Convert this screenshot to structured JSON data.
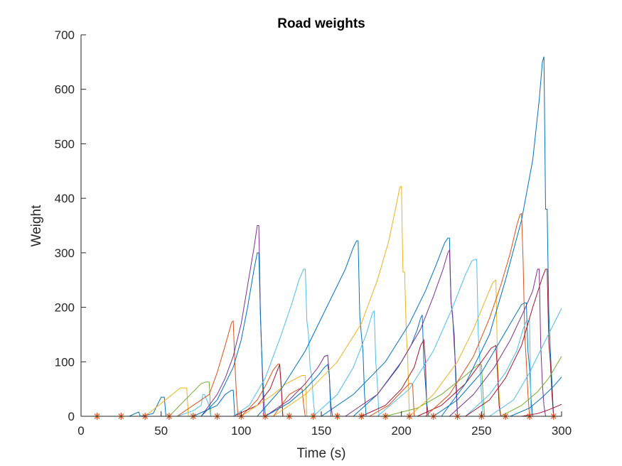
{
  "chart_data": {
    "type": "line",
    "title": "Road weights",
    "xlabel": "Time (s)",
    "ylabel": "Weight",
    "xlim": [
      0,
      300
    ],
    "ylim": [
      0,
      700
    ],
    "xticks": [
      0,
      50,
      100,
      150,
      200,
      250,
      300
    ],
    "yticks": [
      0,
      100,
      200,
      300,
      400,
      500,
      600,
      700
    ],
    "grid": false,
    "legend": "none",
    "colors": [
      "#0072BD",
      "#D95319",
      "#EDB120",
      "#7E2F8E",
      "#77AC30",
      "#4DBEEE",
      "#A2142F"
    ],
    "series": [
      {
        "color": "#0072BD",
        "x": [
          0,
          30,
          36,
          37,
          45,
          50,
          52,
          53,
          300
        ],
        "y": [
          0,
          0,
          8,
          0,
          5,
          35,
          35,
          0,
          0
        ]
      },
      {
        "color": "#EDB120",
        "x": [
          0,
          40,
          62,
          64,
          66,
          67,
          300
        ],
        "y": [
          0,
          0,
          52,
          52,
          52,
          0,
          0
        ]
      },
      {
        "color": "#77AC30",
        "x": [
          0,
          55,
          75,
          78,
          80,
          81,
          300
        ],
        "y": [
          0,
          0,
          60,
          63,
          63,
          0,
          0
        ]
      },
      {
        "color": "#4DBEEE",
        "x": [
          0,
          60,
          70,
          75,
          76,
          77,
          80,
          81,
          300
        ],
        "y": [
          0,
          0,
          10,
          20,
          40,
          40,
          20,
          0,
          0
        ]
      },
      {
        "color": "#0072BD",
        "x": [
          0,
          70,
          85,
          90,
          94,
          95,
          96,
          300
        ],
        "y": [
          0,
          0,
          20,
          40,
          48,
          48,
          0,
          0
        ]
      },
      {
        "color": "#D95319",
        "x": [
          0,
          60,
          80,
          85,
          90,
          94,
          95,
          96,
          97,
          98,
          300
        ],
        "y": [
          0,
          0,
          40,
          80,
          130,
          172,
          175,
          100,
          40,
          0,
          0
        ]
      },
      {
        "color": "#7E2F8E",
        "x": [
          0,
          75,
          85,
          90,
          95,
          100,
          104,
          108,
          110,
          111,
          112,
          113,
          114,
          300
        ],
        "y": [
          0,
          0,
          40,
          70,
          110,
          170,
          240,
          310,
          350,
          350,
          185,
          100,
          0,
          0
        ]
      },
      {
        "color": "#0072BD",
        "x": [
          0,
          75,
          85,
          95,
          100,
          104,
          108,
          110,
          111,
          112,
          113,
          114,
          115,
          300
        ],
        "y": [
          0,
          0,
          30,
          90,
          140,
          200,
          270,
          300,
          300,
          185,
          100,
          40,
          0,
          0
        ]
      },
      {
        "color": "#D95319",
        "x": [
          0,
          100,
          110,
          115,
          120,
          123,
          124,
          125,
          126,
          300
        ],
        "y": [
          0,
          0,
          30,
          55,
          85,
          96,
          96,
          50,
          0,
          0
        ]
      },
      {
        "color": "#A2142F",
        "x": [
          0,
          95,
          110,
          118,
          122,
          124,
          125,
          126,
          300
        ],
        "y": [
          0,
          0,
          20,
          50,
          80,
          95,
          55,
          0,
          0
        ]
      },
      {
        "color": "#4DBEEE",
        "x": [
          0,
          95,
          105,
          115,
          125,
          132,
          136,
          139,
          140,
          141,
          142,
          143,
          144,
          145,
          146,
          300
        ],
        "y": [
          0,
          0,
          20,
          70,
          150,
          210,
          250,
          270,
          270,
          175,
          150,
          90,
          75,
          30,
          0,
          0
        ]
      },
      {
        "color": "#EDB120",
        "x": [
          0,
          100,
          110,
          120,
          128,
          138,
          140,
          141,
          300
        ],
        "y": [
          0,
          0,
          20,
          40,
          60,
          75,
          75,
          0,
          0
        ]
      },
      {
        "color": "#D95319",
        "x": [
          0,
          120,
          130,
          136,
          138,
          139,
          140,
          300
        ],
        "y": [
          0,
          0,
          40,
          50,
          50,
          20,
          0,
          0
        ]
      },
      {
        "color": "#7E2F8E",
        "x": [
          0,
          115,
          130,
          140,
          148,
          152,
          154,
          155,
          156,
          157,
          300
        ],
        "y": [
          0,
          0,
          30,
          60,
          90,
          110,
          112,
          75,
          20,
          0,
          0
        ]
      },
      {
        "color": "#0072BD",
        "x": [
          0,
          115,
          130,
          140,
          148,
          152,
          154,
          155,
          156,
          300
        ],
        "y": [
          0,
          0,
          25,
          50,
          75,
          90,
          95,
          75,
          0,
          0
        ]
      },
      {
        "color": "#0072BD",
        "x": [
          0,
          110,
          125,
          140,
          155,
          165,
          170,
          172,
          173,
          174,
          175,
          176,
          177,
          178,
          300
        ],
        "y": [
          0,
          0,
          50,
          120,
          210,
          270,
          310,
          322,
          322,
          185,
          150,
          120,
          40,
          0,
          0
        ]
      },
      {
        "color": "#4DBEEE",
        "x": [
          0,
          145,
          160,
          170,
          178,
          182,
          183,
          184,
          185,
          186,
          300
        ],
        "y": [
          0,
          0,
          40,
          90,
          150,
          190,
          193,
          100,
          60,
          0,
          0
        ]
      },
      {
        "color": "#EDB120",
        "x": [
          0,
          120,
          140,
          160,
          175,
          185,
          192,
          197,
          199,
          200,
          201,
          202,
          203,
          204,
          205,
          300
        ],
        "y": [
          0,
          0,
          40,
          100,
          170,
          250,
          320,
          390,
          420,
          422,
          265,
          265,
          160,
          100,
          0,
          0
        ]
      },
      {
        "color": "#D95319",
        "x": [
          0,
          180,
          192,
          200,
          205,
          207,
          208,
          300
        ],
        "y": [
          0,
          0,
          20,
          45,
          60,
          60,
          0,
          0
        ]
      },
      {
        "color": "#A2142F",
        "x": [
          0,
          175,
          190,
          200,
          208,
          212,
          214,
          215,
          216,
          300
        ],
        "y": [
          0,
          0,
          20,
          50,
          90,
          130,
          140,
          100,
          0,
          0
        ]
      },
      {
        "color": "#0072BD",
        "x": [
          0,
          170,
          185,
          198,
          206,
          210,
          212,
          213,
          214,
          215,
          216,
          217,
          300
        ],
        "y": [
          0,
          0,
          40,
          90,
          130,
          160,
          180,
          186,
          100,
          60,
          20,
          0,
          0
        ]
      },
      {
        "color": "#0072BD",
        "x": [
          0,
          150,
          170,
          190,
          205,
          215,
          222,
          227,
          229,
          230,
          231,
          232,
          233,
          234,
          235,
          300
        ],
        "y": [
          0,
          0,
          40,
          100,
          170,
          230,
          280,
          318,
          327,
          327,
          210,
          180,
          150,
          60,
          0,
          0
        ]
      },
      {
        "color": "#7E2F8E",
        "x": [
          0,
          165,
          185,
          200,
          212,
          220,
          226,
          229,
          230,
          231,
          232,
          233,
          234,
          235,
          300
        ],
        "y": [
          0,
          0,
          40,
          100,
          160,
          220,
          270,
          300,
          305,
          210,
          185,
          130,
          80,
          0,
          0
        ]
      },
      {
        "color": "#77AC30",
        "x": [
          0,
          190,
          210,
          225,
          240,
          248,
          250,
          251,
          252,
          300
        ],
        "y": [
          0,
          0,
          15,
          40,
          75,
          95,
          95,
          40,
          0,
          0
        ]
      },
      {
        "color": "#4DBEEE",
        "x": [
          0,
          185,
          205,
          220,
          232,
          240,
          244,
          246,
          247,
          248,
          249,
          250,
          251,
          300
        ],
        "y": [
          0,
          0,
          50,
          120,
          200,
          260,
          285,
          288,
          288,
          150,
          100,
          40,
          0,
          0
        ]
      },
      {
        "color": "#EDB120",
        "x": [
          0,
          205,
          220,
          235,
          245,
          252,
          257,
          259,
          260,
          261,
          262,
          300
        ],
        "y": [
          0,
          0,
          40,
          100,
          160,
          210,
          245,
          250,
          100,
          40,
          0,
          0
        ]
      },
      {
        "color": "#A2142F",
        "x": [
          0,
          210,
          225,
          240,
          250,
          256,
          259,
          260,
          261,
          262,
          300
        ],
        "y": [
          0,
          0,
          20,
          60,
          100,
          125,
          130,
          80,
          20,
          0,
          0
        ]
      },
      {
        "color": "#0072BD",
        "x": [
          0,
          220,
          235,
          250,
          262,
          270,
          275,
          277,
          278,
          279,
          280,
          281,
          282,
          300
        ],
        "y": [
          0,
          0,
          30,
          80,
          140,
          180,
          205,
          208,
          208,
          120,
          90,
          30,
          0,
          0
        ]
      },
      {
        "color": "#D95319",
        "x": [
          0,
          215,
          230,
          245,
          255,
          262,
          268,
          272,
          274,
          275,
          276,
          277,
          278,
          279,
          280,
          300
        ],
        "y": [
          0,
          0,
          40,
          110,
          180,
          240,
          300,
          350,
          370,
          372,
          285,
          150,
          100,
          40,
          0,
          0
        ]
      },
      {
        "color": "#4DBEEE",
        "x": [
          0,
          240,
          255,
          265,
          272,
          276,
          278,
          280,
          281,
          300
        ],
        "y": [
          0,
          0,
          40,
          80,
          120,
          160,
          175,
          175,
          0,
          0
        ]
      },
      {
        "color": "#0072BD",
        "x": [
          0,
          225,
          240,
          255,
          265,
          275,
          282,
          286,
          288,
          289,
          290,
          291,
          292,
          293,
          294,
          295,
          300
        ],
        "y": [
          0,
          0,
          60,
          150,
          250,
          360,
          470,
          580,
          650,
          660,
          380,
          380,
          190,
          120,
          60,
          0,
          0
        ]
      },
      {
        "color": "#7E2F8E",
        "x": [
          0,
          230,
          245,
          258,
          268,
          276,
          282,
          285,
          286,
          287,
          288,
          289,
          290,
          300
        ],
        "y": [
          0,
          0,
          40,
          90,
          140,
          190,
          230,
          270,
          270,
          130,
          60,
          20,
          0,
          0
        ]
      },
      {
        "color": "#A2142F",
        "x": [
          0,
          240,
          255,
          265,
          275,
          282,
          288,
          290,
          291,
          292,
          293,
          294,
          295,
          300
        ],
        "y": [
          0,
          0,
          30,
          70,
          130,
          200,
          255,
          270,
          270,
          135,
          100,
          40,
          0,
          0
        ]
      },
      {
        "color": "#4DBEEE",
        "x": [
          0,
          255,
          270,
          280,
          290,
          300
        ],
        "y": [
          0,
          0,
          30,
          80,
          140,
          198
        ]
      },
      {
        "color": "#77AC30",
        "x": [
          0,
          262,
          275,
          285,
          292,
          300
        ],
        "y": [
          0,
          0,
          20,
          45,
          70,
          110
        ]
      },
      {
        "color": "#0072BD",
        "x": [
          0,
          268,
          280,
          288,
          295,
          300
        ],
        "y": [
          0,
          0,
          15,
          35,
          55,
          72
        ]
      },
      {
        "color": "#A2142F",
        "x": [
          0,
          275,
          285,
          292,
          297,
          300
        ],
        "y": [
          0,
          0,
          5,
          12,
          18,
          22
        ]
      }
    ],
    "markers": {
      "color": "#D95319",
      "symbol": "*",
      "x": [
        10,
        25,
        40,
        55,
        70,
        85,
        100,
        115,
        130,
        145,
        160,
        175,
        190,
        205,
        220,
        235,
        250,
        265,
        280,
        295
      ],
      "y": [
        0,
        0,
        0,
        0,
        0,
        0,
        0,
        0,
        0,
        0,
        0,
        0,
        0,
        0,
        0,
        0,
        0,
        0,
        0,
        0
      ]
    }
  }
}
